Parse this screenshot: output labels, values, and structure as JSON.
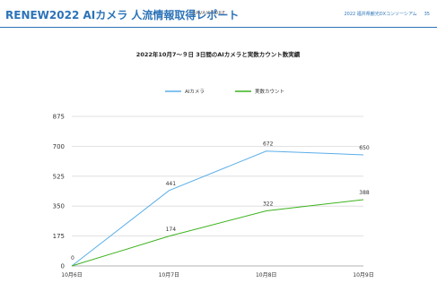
{
  "header": {
    "title": "RENEW2022 AIカメラ 人流情報取得レポート",
    "brand": "SAVAISTORE",
    "right_text": "2022 福井県観光DXコンソーシアム",
    "page_number": "35"
  },
  "chart_data": {
    "type": "line",
    "title": "2022年10月7～９日 3日間のAIカメラと実数カウント数実績",
    "categories": [
      "10月6日",
      "10月7日",
      "10月8日",
      "10月9日"
    ],
    "ylim": [
      0,
      875
    ],
    "yticks": [
      0,
      175,
      350,
      525,
      700,
      875
    ],
    "grid": true,
    "legend_position": "top",
    "series": [
      {
        "name": "AIカメラ",
        "color": "#5aaee8",
        "values": [
          0,
          441,
          672,
          650
        ]
      },
      {
        "name": "実数カウント",
        "color": "#3cb21e",
        "values": [
          0,
          174,
          322,
          388
        ]
      }
    ]
  }
}
